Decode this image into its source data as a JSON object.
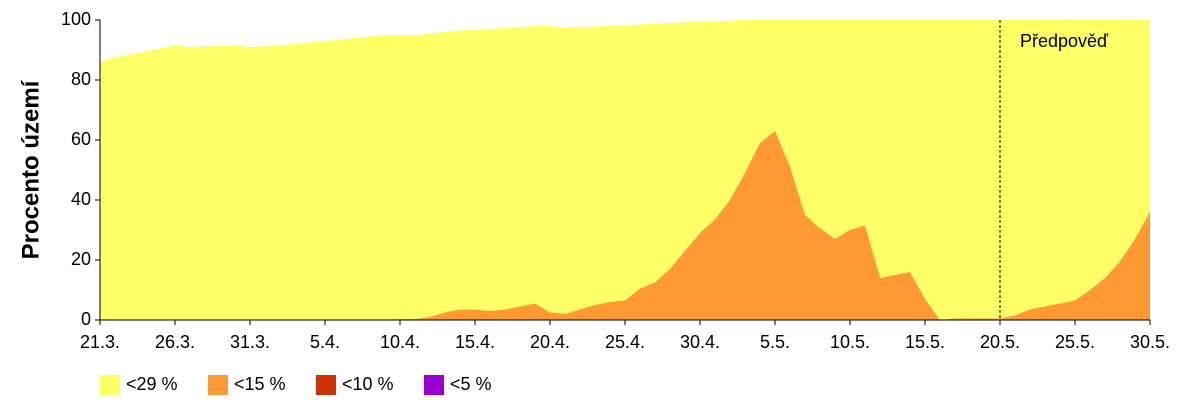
{
  "chart_data": {
    "type": "area",
    "ylabel": "Procento území",
    "annotation": {
      "text": "Předpověď",
      "x": "20.5."
    },
    "categories": [
      "21.3.",
      null,
      null,
      null,
      null,
      "26.3.",
      null,
      null,
      null,
      null,
      "31.3.",
      null,
      null,
      null,
      null,
      "5.4.",
      null,
      null,
      null,
      null,
      "10.4.",
      null,
      null,
      null,
      null,
      "15.4.",
      null,
      null,
      null,
      null,
      "20.4.",
      null,
      null,
      null,
      null,
      "25.4.",
      null,
      null,
      null,
      null,
      "30.4.",
      null,
      null,
      null,
      null,
      "5.5.",
      null,
      null,
      null,
      null,
      "10.5.",
      null,
      null,
      null,
      null,
      "15.5.",
      null,
      null,
      null,
      null,
      "20.5.",
      null,
      null,
      null,
      null,
      "25.5.",
      null,
      null,
      null,
      null,
      "30.5."
    ],
    "series": [
      {
        "name": "<29 %",
        "color": "#ffff66",
        "values": [
          86,
          87.5,
          88.5,
          89.5,
          90.5,
          91.5,
          91,
          91.2,
          91.3,
          91.5,
          91,
          91.2,
          91.6,
          92,
          92.5,
          93,
          93.5,
          94,
          94.5,
          95,
          95,
          94.8,
          95.5,
          96,
          96.5,
          96.7,
          97,
          97.3,
          97.6,
          98,
          98,
          97.5,
          97.6,
          97.8,
          98,
          98.2,
          98.5,
          98.8,
          99,
          99.2,
          99.5,
          99.6,
          99.8,
          100,
          100,
          100,
          100,
          100,
          100,
          100,
          100,
          100,
          100,
          100,
          100,
          100,
          100,
          100,
          100,
          100,
          100,
          100,
          100,
          100,
          100,
          100,
          100,
          100,
          100,
          100,
          100
        ]
      },
      {
        "name": "<15 %",
        "color": "#ff9933",
        "values": [
          0,
          0,
          0,
          0,
          0,
          0,
          0,
          0,
          0,
          0,
          0,
          0,
          0,
          0,
          0,
          0,
          0,
          0,
          0,
          0,
          0.3,
          0.3,
          1,
          2.5,
          3.5,
          3.5,
          3,
          3.5,
          4.5,
          5.5,
          2.5,
          2,
          3.5,
          5,
          6,
          6.5,
          10.5,
          12.5,
          17,
          23,
          29,
          33.5,
          40,
          49,
          59,
          63,
          51,
          35,
          30.5,
          27,
          30,
          31.5,
          14,
          15,
          16,
          7,
          0,
          0.5,
          0.5,
          0.5,
          0.5,
          1.5,
          3.5,
          4.5,
          5.5,
          6.5,
          10,
          14,
          19.5,
          27,
          36
        ]
      },
      {
        "name": "<10 %",
        "color": "#cc3300",
        "values": [
          0,
          0,
          0,
          0,
          0,
          0,
          0,
          0,
          0,
          0,
          0,
          0,
          0,
          0,
          0,
          0,
          0,
          0,
          0,
          0,
          0,
          0,
          0,
          0,
          0,
          0,
          0,
          0,
          0,
          0,
          0,
          0,
          0,
          0,
          0,
          0,
          0,
          0,
          0,
          0,
          0,
          0,
          0,
          0,
          0,
          0,
          0,
          0,
          0,
          0,
          0,
          0,
          0,
          0,
          0,
          0,
          0,
          0,
          0,
          0,
          0,
          0,
          0,
          0,
          0,
          0,
          0,
          0,
          0,
          0,
          0
        ]
      },
      {
        "name": "<5 %",
        "color": "#9900cc",
        "values": [
          0,
          0,
          0,
          0,
          0,
          0,
          0,
          0,
          0,
          0,
          0,
          0,
          0,
          0,
          0,
          0,
          0,
          0,
          0,
          0,
          0,
          0,
          0,
          0,
          0,
          0,
          0,
          0,
          0,
          0,
          0,
          0,
          0,
          0,
          0,
          0,
          0,
          0,
          0,
          0,
          0,
          0,
          0,
          0,
          0,
          0,
          0,
          0,
          0,
          0,
          0,
          0,
          0,
          0,
          0,
          0,
          0,
          0,
          0,
          0,
          0,
          0,
          0,
          0,
          0,
          0,
          0,
          0,
          0,
          0,
          0
        ]
      }
    ],
    "ylim": [
      0,
      100
    ],
    "yticks": [
      0,
      20,
      40,
      60,
      80,
      100
    ],
    "grid": false,
    "legend": "bottom-left"
  }
}
